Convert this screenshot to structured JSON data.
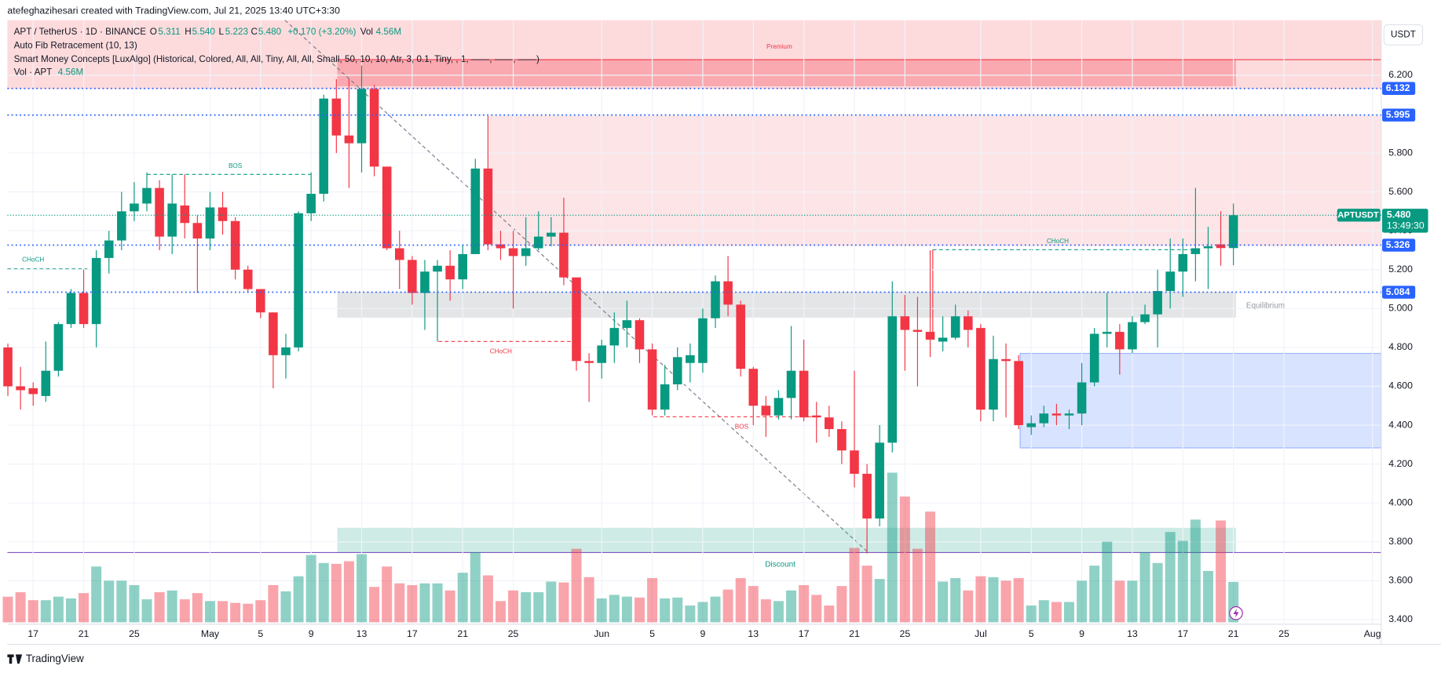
{
  "header": {
    "credit": "atefeghazihesari created with TradingView.com, Jul 21, 2025 13:40 UTC+3:30",
    "symbol": "APT / TetherUS · 1D · BINANCE",
    "o_key": "O",
    "o": "5.311",
    "h_key": "H",
    "h": "5.540",
    "l_key": "L",
    "l": "5.223",
    "c_key": "C",
    "c": "5.480",
    "change": "+0.170 (+3.20%)",
    "vol_key": "Vol",
    "vol": "4.56M",
    "ind1": "Auto Fib Retracement (10, 13)",
    "ind2": "Smart Money Concepts [LuxAlgo] (Historical, Colored, All, All, Tiny, All, All, Small, 50, 10, 10, Atr, 3, 0.1, Tiny, , 1, ——, ——, ——)",
    "ind3": "Vol · APT",
    "ind3_val": "4.56M",
    "currency": "USDT",
    "brand": "TradingView"
  },
  "chart_data": {
    "type": "candlestick",
    "open": [
      4.8,
      4.6,
      4.59,
      4.55,
      4.68,
      4.92,
      5.08,
      4.92,
      5.26,
      5.35,
      5.5,
      5.54,
      5.62,
      5.37,
      5.53,
      5.44,
      5.36,
      5.52,
      5.45,
      5.2,
      5.1,
      4.98,
      4.76,
      4.8,
      5.49,
      5.59,
      6.08,
      5.89,
      5.85,
      6.13,
      5.73,
      5.31,
      5.25,
      5.08,
      5.19,
      5.22,
      5.15,
      5.28,
      5.72,
      5.33,
      5.31,
      5.27,
      5.31,
      5.37,
      5.39,
      5.16,
      4.73,
      4.72,
      4.81,
      4.9,
      4.94,
      4.79,
      4.48,
      4.61,
      4.72,
      4.72,
      4.95,
      5.14,
      5.02,
      4.69,
      4.5,
      4.45,
      4.54,
      4.68,
      4.45,
      4.44,
      4.38,
      4.27,
      4.15,
      3.92,
      4.31,
      4.96,
      4.89,
      4.88,
      4.83,
      4.85,
      4.96,
      4.9,
      4.48,
      4.74,
      4.73,
      4.39,
      4.41,
      4.46,
      4.45,
      4.46,
      4.62,
      4.87,
      4.88,
      4.79,
      4.93,
      4.97,
      5.09,
      5.19,
      5.28,
      5.31,
      5.33,
      5.311
    ],
    "high": [
      4.82,
      4.7,
      4.62,
      4.83,
      4.93,
      5.1,
      5.2,
      5.3,
      5.4,
      5.6,
      5.65,
      5.7,
      5.66,
      5.69,
      5.69,
      5.48,
      5.6,
      5.6,
      5.47,
      5.22,
      5.1,
      4.98,
      4.87,
      5.5,
      5.7,
      6.1,
      6.18,
      6.18,
      6.25,
      6.15,
      5.73,
      5.4,
      5.27,
      5.25,
      5.25,
      5.3,
      5.33,
      5.77,
      5.99,
      5.4,
      5.4,
      5.47,
      5.5,
      5.47,
      5.57,
      5.16,
      4.77,
      4.84,
      4.98,
      5.04,
      4.95,
      4.82,
      4.71,
      4.8,
      4.82,
      5.0,
      5.17,
      5.27,
      5.04,
      4.7,
      4.55,
      4.58,
      4.91,
      4.84,
      4.52,
      4.5,
      4.42,
      4.68,
      4.2,
      4.4,
      5.14,
      5.07,
      5.06,
      5.3,
      4.96,
      5.02,
      4.99,
      4.92,
      4.86,
      4.82,
      4.76,
      4.45,
      4.5,
      4.51,
      4.48,
      4.72,
      4.9,
      5.08,
      4.92,
      4.96,
      5.02,
      5.2,
      5.36,
      5.36,
      5.62,
      5.42,
      5.5,
      5.54
    ],
    "low": [
      4.55,
      4.48,
      4.5,
      4.52,
      4.65,
      4.9,
      4.9,
      4.8,
      5.18,
      5.3,
      5.45,
      5.5,
      5.3,
      5.28,
      5.36,
      5.08,
      5.3,
      5.38,
      5.15,
      5.08,
      4.95,
      4.59,
      4.64,
      4.78,
      5.45,
      5.55,
      5.8,
      5.62,
      5.7,
      5.68,
      5.3,
      5.1,
      5.02,
      4.89,
      4.83,
      5.04,
      5.1,
      5.28,
      5.3,
      5.25,
      5.0,
      5.22,
      5.3,
      5.32,
      5.12,
      4.68,
      4.52,
      4.64,
      4.72,
      4.8,
      4.72,
      4.45,
      4.45,
      4.58,
      4.62,
      4.67,
      4.9,
      4.96,
      4.65,
      4.4,
      4.34,
      4.43,
      4.43,
      4.42,
      4.31,
      4.34,
      4.2,
      4.08,
      3.74,
      3.88,
      4.26,
      4.68,
      4.6,
      4.75,
      4.78,
      4.84,
      4.8,
      4.42,
      4.42,
      4.44,
      4.38,
      4.35,
      4.39,
      4.4,
      4.38,
      4.4,
      4.6,
      4.8,
      4.66,
      4.77,
      4.92,
      4.8,
      5.0,
      5.06,
      5.14,
      5.1,
      5.22,
      5.223
    ],
    "close": [
      4.6,
      4.58,
      4.56,
      4.68,
      4.92,
      5.08,
      4.92,
      5.26,
      5.35,
      5.5,
      5.54,
      5.62,
      5.37,
      5.54,
      5.44,
      5.36,
      5.52,
      5.45,
      5.2,
      5.1,
      4.98,
      4.76,
      4.8,
      5.49,
      5.59,
      6.08,
      5.89,
      5.85,
      6.13,
      5.73,
      5.31,
      5.25,
      5.08,
      5.19,
      5.22,
      5.15,
      5.28,
      5.72,
      5.33,
      5.31,
      5.27,
      5.31,
      5.37,
      5.39,
      5.16,
      4.73,
      4.72,
      4.81,
      4.9,
      4.94,
      4.79,
      4.48,
      4.61,
      4.75,
      4.76,
      4.95,
      5.14,
      5.02,
      4.69,
      4.5,
      4.45,
      4.54,
      4.68,
      4.44,
      4.44,
      4.38,
      4.27,
      4.15,
      3.92,
      4.31,
      4.96,
      4.89,
      4.88,
      4.84,
      4.85,
      4.96,
      4.89,
      4.48,
      4.74,
      4.73,
      4.4,
      4.41,
      4.46,
      4.45,
      4.46,
      4.62,
      4.87,
      4.88,
      4.79,
      4.93,
      4.97,
      5.09,
      5.19,
      5.28,
      5.31,
      5.32,
      5.311,
      5.48
    ],
    "volume": [
      2.9,
      3.4,
      2.5,
      2.5,
      2.9,
      2.7,
      3.3,
      6.3,
      4.7,
      4.7,
      4.2,
      2.6,
      3.4,
      3.6,
      2.6,
      3.3,
      2.4,
      2.4,
      2.2,
      2.1,
      2.5,
      4.2,
      3.5,
      5.2,
      7.6,
      6.7,
      6.6,
      6.9,
      7.7,
      4.0,
      6.3,
      4.4,
      4.2,
      4.4,
      4.4,
      3.6,
      5.6,
      7.9,
      5.3,
      2.4,
      3.6,
      3.4,
      3.4,
      4.6,
      4.5,
      8.3,
      5.1,
      2.7,
      3.1,
      2.9,
      2.8,
      5.0,
      2.7,
      2.8,
      1.9,
      2.3,
      2.9,
      3.7,
      5.0,
      4.1,
      2.6,
      2.4,
      3.6,
      4.2,
      3.1,
      1.9,
      4.1,
      8.4,
      6.4,
      4.9,
      16.9,
      14.2,
      8.3,
      12.5,
      4.6,
      5.0,
      3.6,
      5.2,
      5.1,
      4.7,
      5.0,
      1.9,
      2.5,
      2.3,
      2.3,
      4.7,
      6.4,
      9.1,
      4.7,
      4.7,
      7.9,
      6.7,
      10.2,
      9.2,
      11.6,
      5.8,
      11.5,
      4.56
    ],
    "up_color": "#089981",
    "down_color": "#f23645",
    "xlim": [
      -0.62,
      108.7
    ],
    "xticks": [
      {
        "value": 2,
        "label": "17"
      },
      {
        "value": 6,
        "label": "21"
      },
      {
        "value": 10,
        "label": "25"
      },
      {
        "value": 16,
        "label": "May"
      },
      {
        "value": 20,
        "label": "5"
      },
      {
        "value": 24,
        "label": "9"
      },
      {
        "value": 28,
        "label": "13"
      },
      {
        "value": 32,
        "label": "17"
      },
      {
        "value": 36,
        "label": "21"
      },
      {
        "value": 40,
        "label": "25"
      },
      {
        "value": 47,
        "label": "Jun"
      },
      {
        "value": 51,
        "label": "5"
      },
      {
        "value": 55,
        "label": "9"
      },
      {
        "value": 59,
        "label": "13"
      },
      {
        "value": 63,
        "label": "17"
      },
      {
        "value": 67,
        "label": "21"
      },
      {
        "value": 71,
        "label": "25"
      },
      {
        "value": 77,
        "label": "Jul"
      },
      {
        "value": 81,
        "label": "5"
      },
      {
        "value": 85,
        "label": "9"
      },
      {
        "value": 89,
        "label": "13"
      },
      {
        "value": 93,
        "label": "17"
      },
      {
        "value": 97,
        "label": "21"
      },
      {
        "value": 101,
        "label": "25"
      },
      {
        "value": 108,
        "label": "Aug"
      }
    ],
    "ylim": [
      3.386,
      6.483
    ],
    "yticks": [
      {
        "value": 3.4,
        "label": "3.400"
      },
      {
        "value": 3.6,
        "label": "3.600"
      },
      {
        "value": 3.8,
        "label": "3.800"
      },
      {
        "value": 4.0,
        "label": "4.000"
      },
      {
        "value": 4.2,
        "label": "4.200"
      },
      {
        "value": 4.4,
        "label": "4.400"
      },
      {
        "value": 4.6,
        "label": "4.600"
      },
      {
        "value": 4.8,
        "label": "4.800"
      },
      {
        "value": 5.0,
        "label": "5.000"
      },
      {
        "value": 5.2,
        "label": "5.200"
      },
      {
        "value": 5.4,
        "label": "5.400"
      },
      {
        "value": 5.6,
        "label": "5.600"
      },
      {
        "value": 5.8,
        "label": "5.800"
      },
      {
        "value": 6.0,
        "label": "6.000"
      },
      {
        "value": 6.2,
        "label": "6.200"
      }
    ],
    "grid": true,
    "price_lines": [
      {
        "value": 6.132,
        "color": "#2962ff"
      },
      {
        "value": 5.995,
        "color": "#2962ff"
      },
      {
        "value": 5.326,
        "color": "#2962ff"
      },
      {
        "value": 5.084,
        "color": "#2962ff"
      }
    ],
    "last_price": {
      "symbol": "APTUSDT",
      "value": 5.48,
      "label": "5.480",
      "countdown": "13:49:30",
      "color": "#089981"
    },
    "annotations": [
      "Premium",
      "BOS",
      "CHoCH",
      "CHoCH",
      "BOS",
      "CHoCH",
      "Equilibrium",
      "Discount"
    ]
  }
}
